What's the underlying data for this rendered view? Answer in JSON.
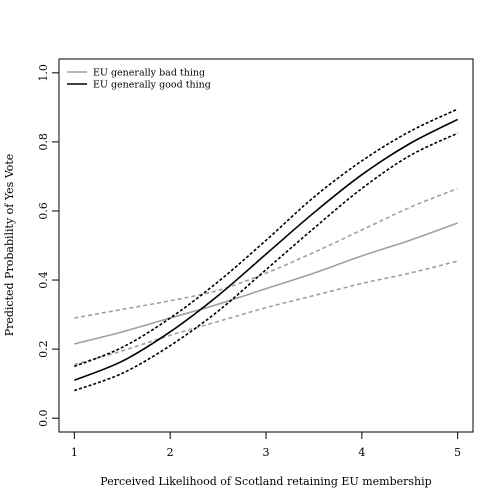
{
  "chart_data": {
    "type": "line",
    "title": "",
    "xlabel": "Perceived Likelihood of Scotland retaining EU membership",
    "ylabel": "Predicted Probability of Yes Vote",
    "xlim": [
      0.84,
      5.16
    ],
    "ylim": [
      -0.04,
      1.04
    ],
    "xticks": [
      1,
      2,
      3,
      4,
      5
    ],
    "yticks": [
      0.0,
      0.2,
      0.4,
      0.6,
      0.8,
      1.0
    ],
    "ytick_labels": [
      "0.0",
      "0.2",
      "0.4",
      "0.6",
      "0.8",
      "1.0"
    ],
    "legend_position": "top-left",
    "grid": false,
    "series": [
      {
        "name": "EU generally bad thing",
        "color": "#a0a0a0",
        "style": "solid",
        "x": [
          1,
          1.5,
          2,
          2.5,
          3,
          3.5,
          4,
          4.5,
          5
        ],
        "y": [
          0.215,
          0.25,
          0.29,
          0.33,
          0.375,
          0.42,
          0.47,
          0.515,
          0.565
        ],
        "ci_lower": [
          0.155,
          0.195,
          0.24,
          0.28,
          0.32,
          0.355,
          0.39,
          0.42,
          0.455
        ],
        "ci_upper": [
          0.29,
          0.315,
          0.34,
          0.37,
          0.42,
          0.48,
          0.545,
          0.61,
          0.665
        ]
      },
      {
        "name": "EU generally good thing",
        "color": "#000000",
        "style": "solid",
        "x": [
          1,
          1.5,
          2,
          2.5,
          3,
          3.5,
          4,
          4.5,
          5
        ],
        "y": [
          0.11,
          0.165,
          0.25,
          0.355,
          0.475,
          0.595,
          0.705,
          0.795,
          0.865
        ],
        "ci_lower": [
          0.08,
          0.13,
          0.21,
          0.31,
          0.43,
          0.55,
          0.665,
          0.76,
          0.825
        ],
        "ci_upper": [
          0.15,
          0.205,
          0.29,
          0.395,
          0.515,
          0.64,
          0.745,
          0.83,
          0.895
        ]
      }
    ]
  }
}
